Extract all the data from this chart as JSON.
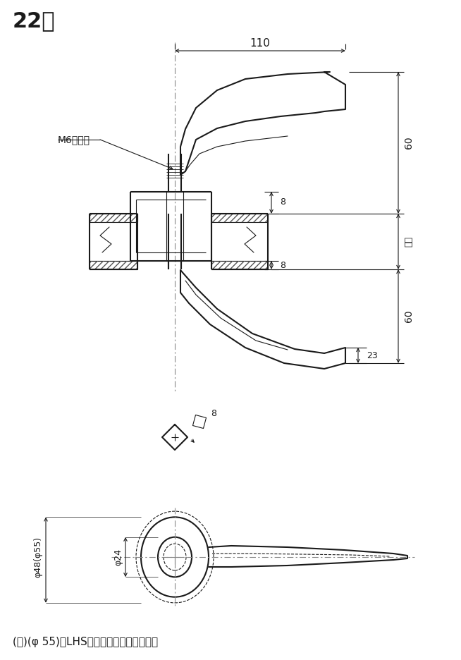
{
  "title": "22型",
  "bg_color": "#ffffff",
  "line_color": "#1a1a1a",
  "note_text": "(注)(φ 55)はLHSシリーズの場合を示す。",
  "label_m6": "M6小ねじ",
  "dim_110": "110",
  "dim_60_top": "60",
  "dim_60_bot": "60",
  "dim_23": "23",
  "dim_8_top": "8",
  "dim_8_bot": "8",
  "dim_tobira": "扈単",
  "dim_phi48": "φ48(φ55)",
  "dim_phi24": "φ24",
  "dim_8sq": "8",
  "fig_width": 6.54,
  "fig_height": 9.36,
  "dpi": 100
}
